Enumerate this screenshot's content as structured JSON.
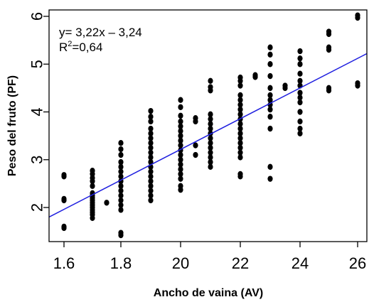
{
  "chart_data": {
    "type": "scatter",
    "xlabel": "Ancho de vaina (AV)",
    "ylabel": "Peso del fruto (PF)",
    "xlim": [
      1.6,
      26
    ],
    "ylim": [
      1.3,
      6.2
    ],
    "x_ticks": [
      "1.6",
      "1.8",
      "20",
      "22",
      "24",
      "26"
    ],
    "y_ticks": [
      "2",
      "3",
      "4",
      "5",
      "6"
    ],
    "grid": false,
    "annotations": {
      "equation": "y= 3,22x – 3,24",
      "r2_prefix": "R",
      "r2_exp": "2",
      "r2_value": "=0,64"
    },
    "trendline": {
      "x": [
        1.6,
        26
      ],
      "y": [
        1.8,
        5.22
      ],
      "color": "#1f1fdf"
    },
    "point_color": "#000000",
    "series": [
      {
        "points": [
          [
            1.6,
            1.57
          ],
          [
            1.6,
            1.6
          ],
          [
            1.6,
            2.15
          ],
          [
            1.6,
            2.18
          ],
          [
            1.6,
            2.65
          ],
          [
            1.6,
            2.68
          ],
          [
            1.7,
            1.78
          ],
          [
            1.7,
            1.85
          ],
          [
            1.7,
            1.9
          ],
          [
            1.7,
            1.95
          ],
          [
            1.7,
            2.0
          ],
          [
            1.7,
            2.05
          ],
          [
            1.7,
            2.1
          ],
          [
            1.7,
            2.15
          ],
          [
            1.7,
            2.2
          ],
          [
            1.7,
            2.25
          ],
          [
            1.7,
            2.3
          ],
          [
            1.7,
            2.45
          ],
          [
            1.7,
            2.55
          ],
          [
            1.7,
            2.62
          ],
          [
            1.7,
            2.7
          ],
          [
            1.7,
            2.77
          ],
          [
            1.75,
            2.1
          ],
          [
            1.8,
            1.42
          ],
          [
            1.8,
            1.47
          ],
          [
            1.8,
            1.95
          ],
          [
            1.8,
            2.05
          ],
          [
            1.8,
            2.15
          ],
          [
            1.8,
            2.25
          ],
          [
            1.8,
            2.35
          ],
          [
            1.8,
            2.45
          ],
          [
            1.8,
            2.55
          ],
          [
            1.8,
            2.65
          ],
          [
            1.8,
            2.75
          ],
          [
            1.8,
            2.85
          ],
          [
            1.8,
            2.95
          ],
          [
            1.8,
            3.1
          ],
          [
            1.8,
            3.22
          ],
          [
            1.8,
            3.35
          ],
          [
            19,
            2.15
          ],
          [
            19,
            2.25
          ],
          [
            19,
            2.35
          ],
          [
            19,
            2.45
          ],
          [
            19,
            2.55
          ],
          [
            19,
            2.65
          ],
          [
            19,
            2.75
          ],
          [
            19,
            2.85
          ],
          [
            19,
            2.95
          ],
          [
            19,
            3.05
          ],
          [
            19,
            3.15
          ],
          [
            19,
            3.25
          ],
          [
            19,
            3.35
          ],
          [
            19,
            3.45
          ],
          [
            19,
            3.55
          ],
          [
            19,
            3.65
          ],
          [
            19,
            3.8
          ],
          [
            19,
            3.9
          ],
          [
            19,
            4.02
          ],
          [
            20,
            2.37
          ],
          [
            20,
            2.45
          ],
          [
            20,
            2.6
          ],
          [
            20,
            2.7
          ],
          [
            20,
            2.8
          ],
          [
            20,
            2.9
          ],
          [
            20,
            3.0
          ],
          [
            20,
            3.1
          ],
          [
            20,
            3.2
          ],
          [
            20,
            3.3
          ],
          [
            20,
            3.4
          ],
          [
            20,
            3.5
          ],
          [
            20,
            3.6
          ],
          [
            20,
            3.7
          ],
          [
            20,
            3.8
          ],
          [
            20,
            3.92
          ],
          [
            20,
            4.1
          ],
          [
            20,
            4.25
          ],
          [
            20.5,
            3.1
          ],
          [
            20.5,
            3.3
          ],
          [
            20.5,
            3.8
          ],
          [
            20.5,
            3.87
          ],
          [
            21,
            2.85
          ],
          [
            21,
            2.95
          ],
          [
            21,
            3.05
          ],
          [
            21,
            3.15
          ],
          [
            21,
            3.25
          ],
          [
            21,
            3.35
          ],
          [
            21,
            3.45
          ],
          [
            21,
            3.55
          ],
          [
            21,
            3.65
          ],
          [
            21,
            3.75
          ],
          [
            21,
            3.85
          ],
          [
            21,
            3.95
          ],
          [
            21,
            4.45
          ],
          [
            21,
            4.52
          ],
          [
            21,
            4.65
          ],
          [
            22,
            2.65
          ],
          [
            22,
            2.7
          ],
          [
            22,
            3.05
          ],
          [
            22,
            3.15
          ],
          [
            22,
            3.25
          ],
          [
            22,
            3.35
          ],
          [
            22,
            3.45
          ],
          [
            22,
            3.55
          ],
          [
            22,
            3.65
          ],
          [
            22,
            3.75
          ],
          [
            22,
            3.85
          ],
          [
            22,
            3.95
          ],
          [
            22,
            4.05
          ],
          [
            22,
            4.15
          ],
          [
            22,
            4.25
          ],
          [
            22,
            4.35
          ],
          [
            22,
            4.55
          ],
          [
            22,
            4.65
          ],
          [
            22,
            4.72
          ],
          [
            22.5,
            4.73
          ],
          [
            22.5,
            4.77
          ],
          [
            23,
            2.6
          ],
          [
            23,
            2.85
          ],
          [
            23,
            3.65
          ],
          [
            23,
            3.9
          ],
          [
            23,
            4.05
          ],
          [
            23,
            4.15
          ],
          [
            23,
            4.25
          ],
          [
            23,
            4.35
          ],
          [
            23,
            4.5
          ],
          [
            23,
            4.75
          ],
          [
            23,
            5.0
          ],
          [
            23,
            5.2
          ],
          [
            23,
            5.35
          ],
          [
            23.5,
            4.5
          ],
          [
            23.5,
            4.55
          ],
          [
            24,
            3.55
          ],
          [
            24,
            3.65
          ],
          [
            24,
            3.8
          ],
          [
            24,
            4.0
          ],
          [
            24,
            4.2
          ],
          [
            24,
            4.3
          ],
          [
            24,
            4.4
          ],
          [
            24,
            4.55
          ],
          [
            24,
            4.65
          ],
          [
            24,
            4.8
          ],
          [
            24,
            5.0
          ],
          [
            24,
            5.12
          ],
          [
            24,
            5.27
          ],
          [
            25,
            4.45
          ],
          [
            25,
            4.5
          ],
          [
            25,
            5.3
          ],
          [
            25,
            5.35
          ],
          [
            25,
            5.63
          ],
          [
            25,
            5.68
          ],
          [
            26,
            4.55
          ],
          [
            26,
            4.6
          ],
          [
            26,
            5.97
          ],
          [
            26,
            6.02
          ]
        ]
      }
    ]
  }
}
